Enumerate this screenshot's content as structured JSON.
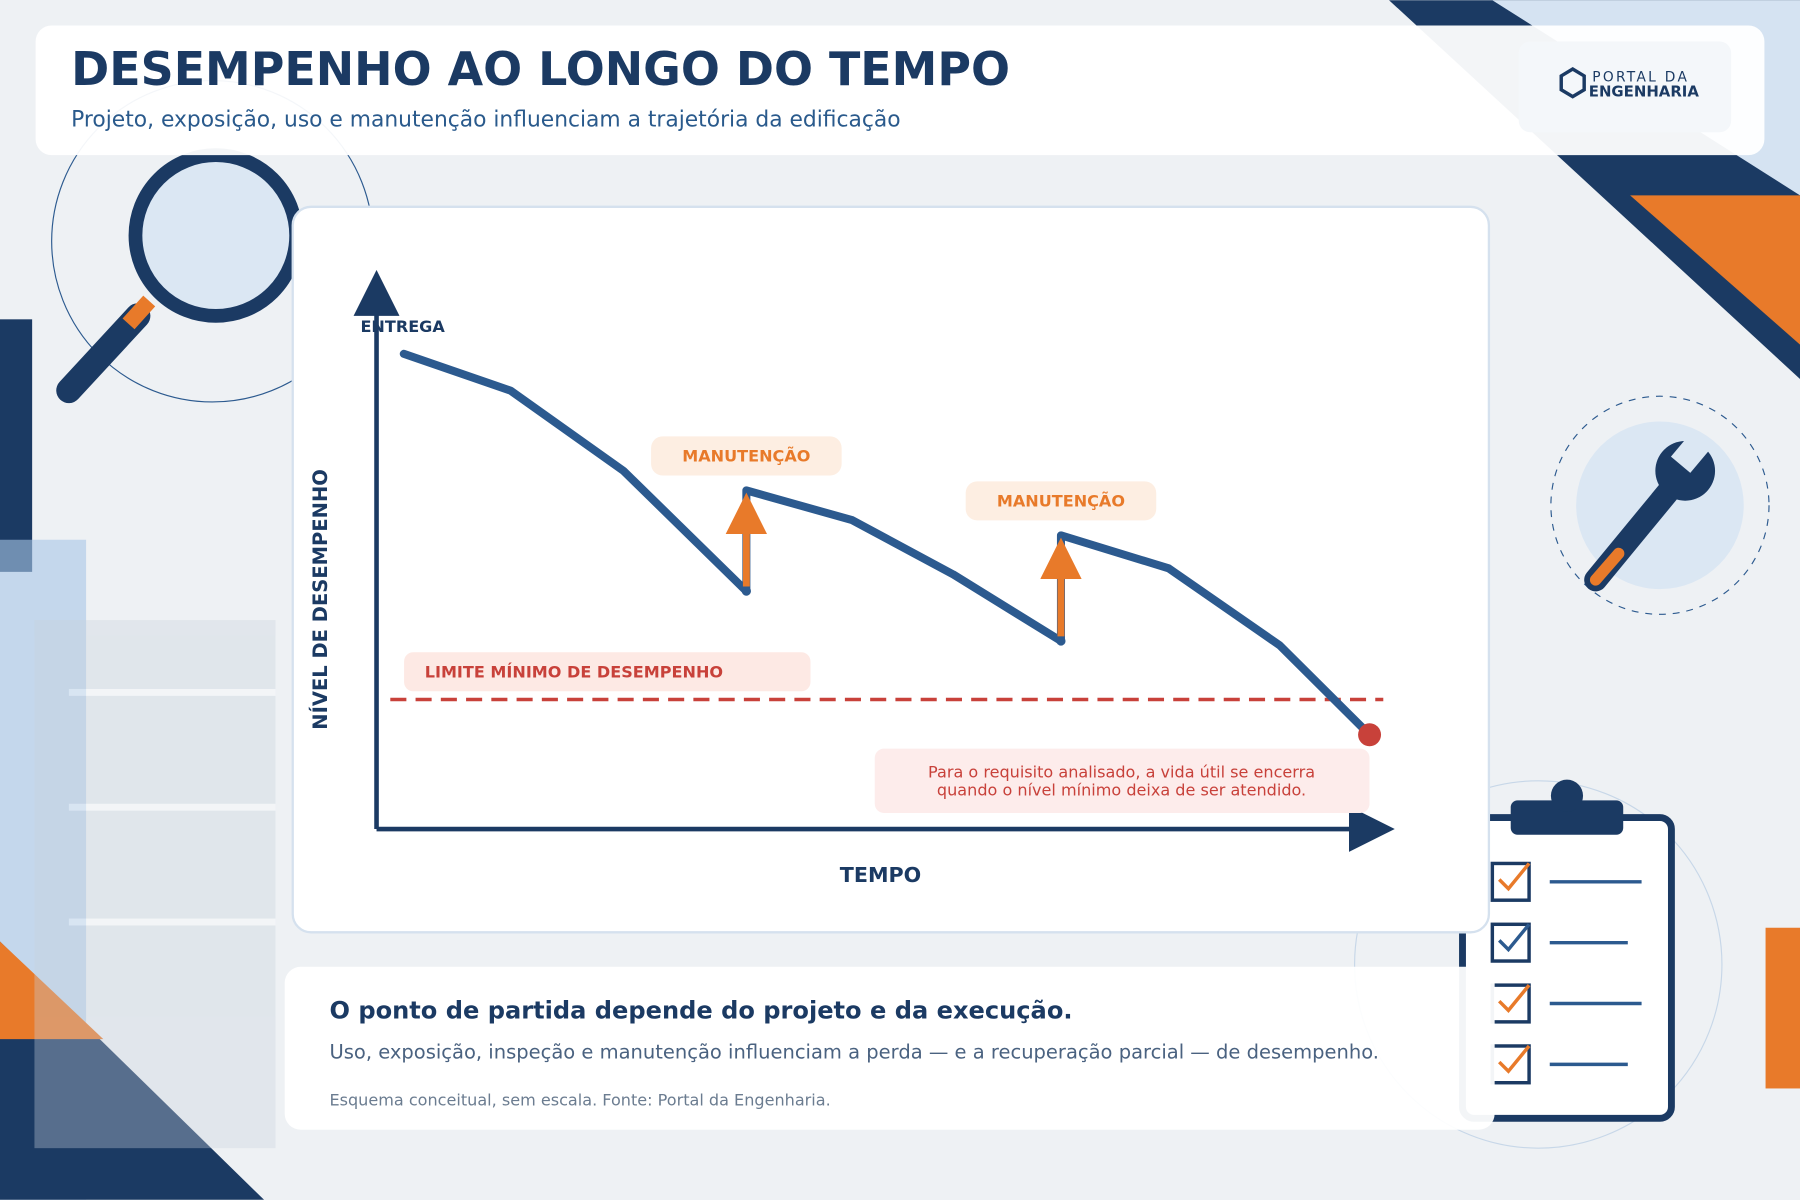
{
  "header": {
    "title": "DESEMPENHO AO LONGO DO TEMPO",
    "subtitle": "Projeto, exposição, uso e manutenção influenciam a trajetória da edificação",
    "logo": {
      "line1": "PORTAL DA",
      "line2": "ENGENHARIA"
    }
  },
  "chart_data": {
    "type": "line",
    "start_label": "ENTREGA",
    "y_label": "NÍVEL DE DESEMPENHO",
    "x_label": "TEMPO",
    "x": [
      2.5,
      13.2,
      24.5,
      36.8,
      36.8,
      47.4,
      57.5,
      68.3,
      68.3,
      79.1,
      90.2,
      99.2
    ],
    "series": [
      {
        "color": "#2c5a8f",
        "values": [
          87.7,
          80.9,
          66.1,
          43.9,
          62.5,
          57.0,
          47.0,
          34.7,
          54.2,
          48.1,
          33.9,
          17.4
        ]
      }
    ],
    "xlim": [
      0,
      100
    ],
    "ylim": [
      0,
      100
    ],
    "threshold": {
      "label": "LIMITE MÍNIMO DE DESEMPENHO",
      "value": 23.9,
      "color": "#c8413a"
    },
    "annotations": [
      "MANUTENÇÃO",
      "MANUTENÇÃO"
    ],
    "annotation_color": "#e87a2a",
    "end_note": [
      "Para o requisito analisado, a vida útil se encerra",
      "quando o nível mínimo deixa de ser atendido."
    ]
  },
  "footer": {
    "heading": "O ponto de partida depende do projeto e da execução.",
    "body": "Uso, exposição, inspeção e manutenção influenciam a perda — e a recuperação parcial — de desempenho.",
    "source": "Esquema conceitual, sem escala. Fonte: Portal da Engenharia."
  }
}
